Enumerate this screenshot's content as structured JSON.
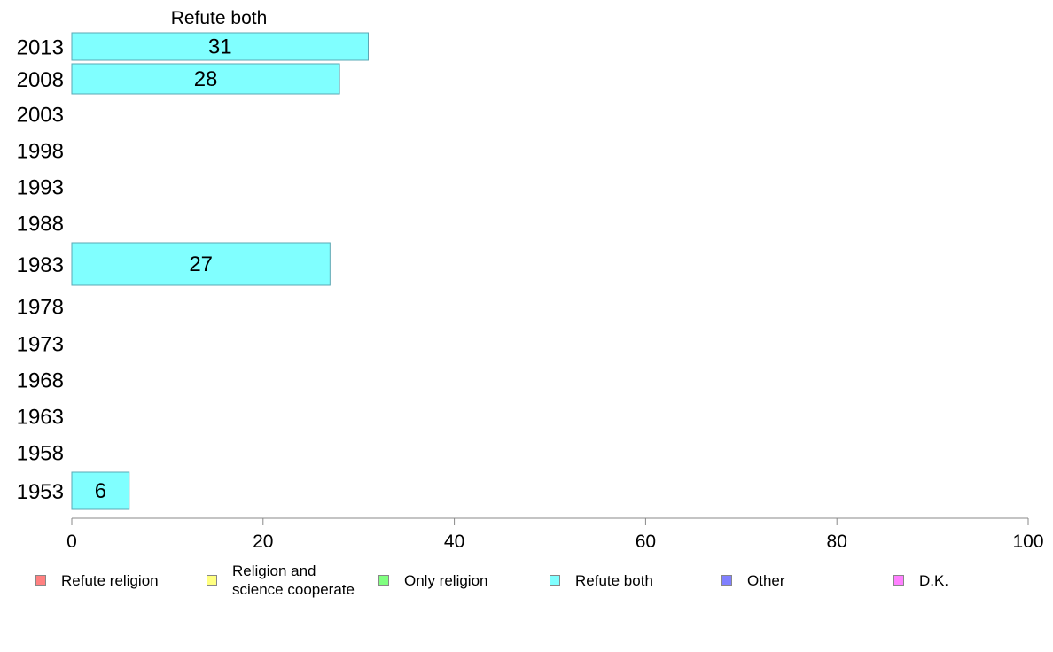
{
  "chart_data": {
    "type": "bar",
    "orientation": "horizontal",
    "title": "Refute both",
    "categories": [
      "2013",
      "2008",
      "2003",
      "1998",
      "1993",
      "1988",
      "1983",
      "1978",
      "1973",
      "1968",
      "1963",
      "1958",
      "1953"
    ],
    "series": [
      {
        "name": "Refute both",
        "color": "#80ffff",
        "values": [
          31,
          28,
          null,
          null,
          null,
          null,
          27,
          null,
          null,
          null,
          null,
          null,
          6
        ]
      }
    ],
    "xlim": [
      0,
      100
    ],
    "xticks": [
      "0",
      "20",
      "40",
      "60",
      "80",
      "100"
    ],
    "grid": false,
    "legend_position": "bottom"
  },
  "legend": [
    {
      "label": "Refute religion",
      "color": "#ff8080"
    },
    {
      "label": "Religion and\nscience cooperate",
      "color": "#ffff80"
    },
    {
      "label": "Only religion",
      "color": "#80ff80"
    },
    {
      "label": "Refute both",
      "color": "#80ffff"
    },
    {
      "label": "Other",
      "color": "#8080ff"
    },
    {
      "label": "D.K.",
      "color": "#ff80ff"
    }
  ]
}
